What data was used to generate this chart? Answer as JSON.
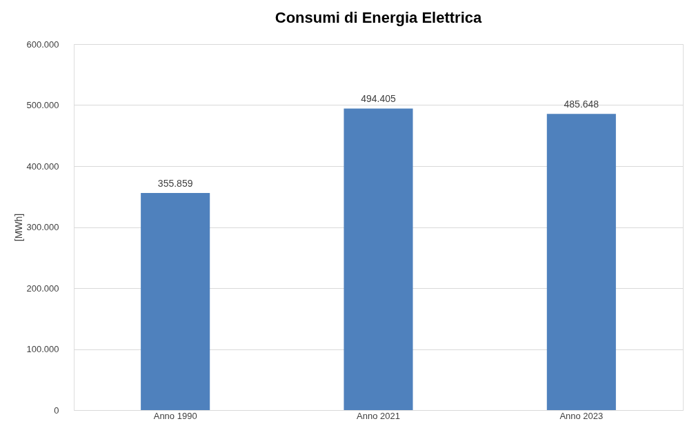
{
  "chart_data": {
    "type": "bar",
    "title": "Consumi di Energia Elettrica",
    "ylabel": "[MWh]",
    "categories": [
      "Anno 1990",
      "Anno 2021",
      "Anno 2023"
    ],
    "values": [
      355859,
      494405,
      485648
    ],
    "value_labels": [
      "355.859",
      "494.405",
      "485.648"
    ],
    "color": "#4f81bd",
    "ylim": [
      0,
      600000
    ],
    "yticks": [
      0,
      {
        "value": 100000,
        "label": "100.000"
      },
      {
        "value": 200000,
        "label": "200.000"
      },
      {
        "value": 300000,
        "label": "300.000"
      },
      {
        "value": 400000,
        "label": "400.000"
      },
      {
        "value": 500000,
        "label": "500.000"
      },
      {
        "value": 600000,
        "label": "600.000"
      }
    ],
    "grid": "y"
  }
}
